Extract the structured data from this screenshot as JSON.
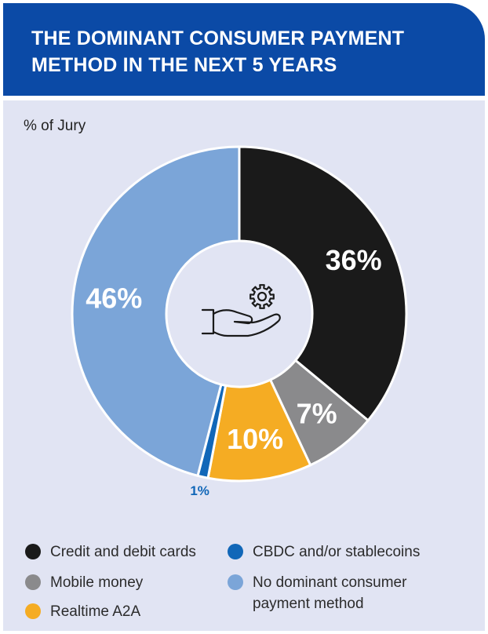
{
  "header": {
    "title": "THE DOMINANT CONSUMER PAYMENT METHOD IN THE NEXT 5 YEARS"
  },
  "chart_data": {
    "type": "pie",
    "subtitle": "% of Jury",
    "center_icon": "hand-gear-icon",
    "slices": [
      {
        "label": "Credit and debit cards",
        "value": 36,
        "value_label": "36%",
        "color": "#1a1a1a"
      },
      {
        "label": "Mobile money",
        "value": 7,
        "value_label": "7%",
        "color": "#8a8a8c"
      },
      {
        "label": "Realtime A2A",
        "value": 10,
        "value_label": "10%",
        "color": "#f5ac23"
      },
      {
        "label": "CBDC and/or stablecoins",
        "value": 1,
        "value_label": "1%",
        "color": "#1167b8"
      },
      {
        "label": "No dominant consumer payment method",
        "value": 46,
        "value_label": "46%",
        "color": "#7ba5d8"
      }
    ],
    "legend_placement": "bottom"
  }
}
